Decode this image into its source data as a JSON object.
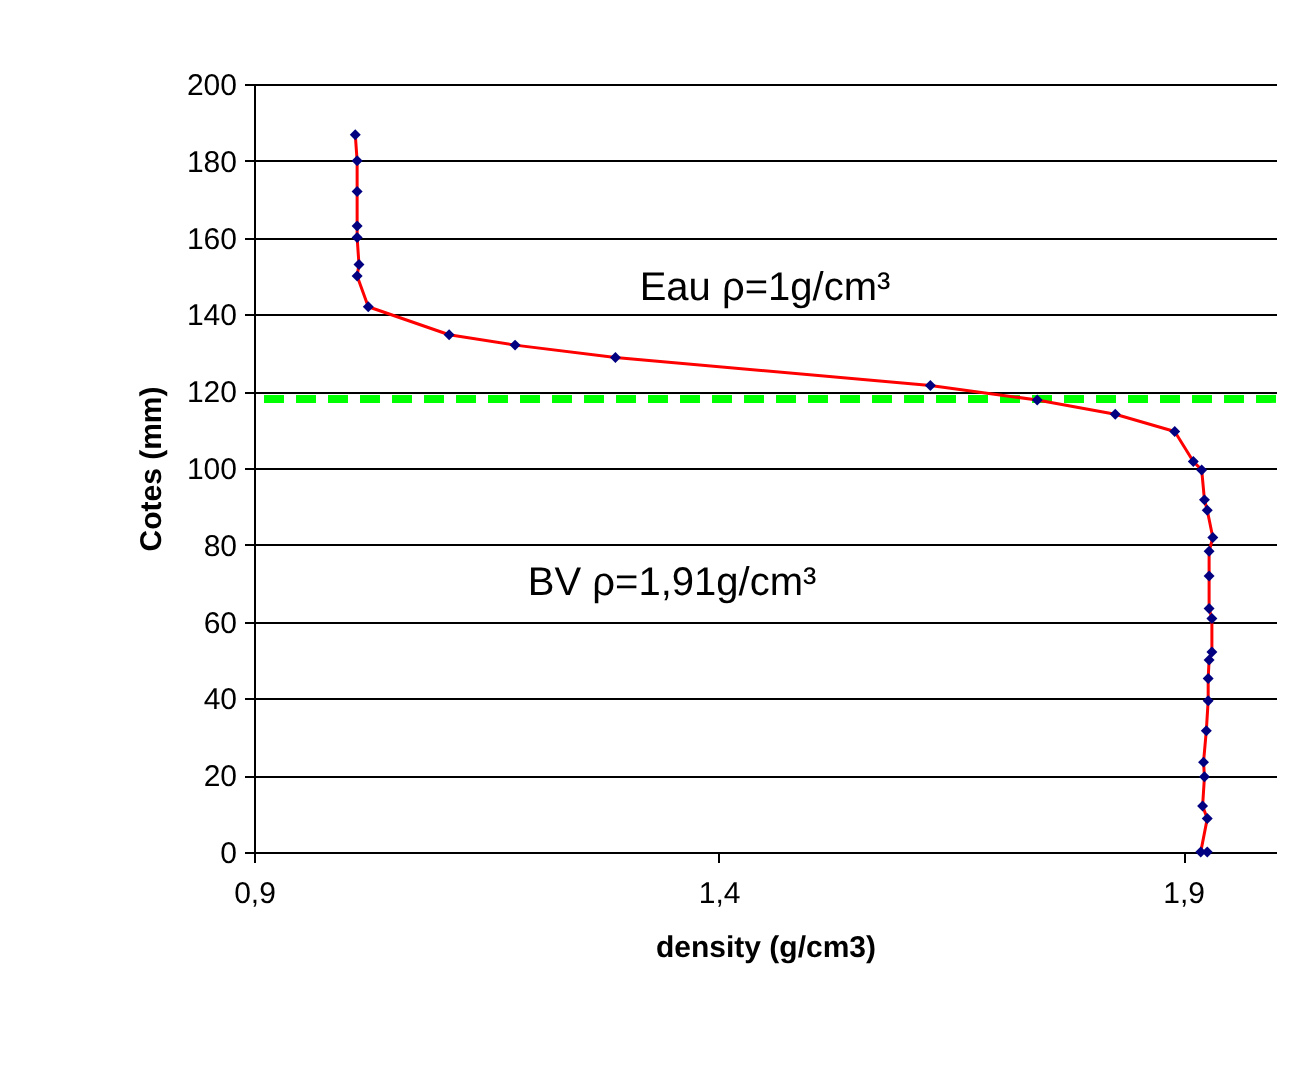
{
  "chart_data": {
    "type": "line",
    "xlabel": "density (g/cm3)",
    "ylabel": "Cotes (mm)",
    "xlim": [
      0.9,
      2.0
    ],
    "xticks": [
      {
        "value": 0.9,
        "label": "0,9"
      },
      {
        "value": 1.4,
        "label": "1,4"
      },
      {
        "value": 1.9,
        "label": "1,9"
      }
    ],
    "ylim": [
      0,
      200
    ],
    "yticks": [
      0,
      20,
      40,
      60,
      80,
      100,
      120,
      140,
      160,
      180,
      200
    ],
    "grid": "y",
    "series": [
      {
        "type": "line",
        "color": "#ff0000",
        "marker": "none",
        "x": [
          1.009,
          1.011,
          1.011,
          1.011,
          1.011,
          1.013,
          1.011,
          1.023,
          1.11,
          1.181,
          1.289,
          1.628,
          1.743,
          1.827,
          1.891,
          1.911,
          1.92,
          1.923,
          1.926,
          1.932,
          1.928,
          1.928,
          1.928,
          1.931,
          1.931,
          1.928,
          1.927,
          1.927,
          1.925,
          1.922,
          1.923,
          1.921,
          1.926,
          1.919,
          1.926
        ],
        "values": [
          186.8,
          180,
          172,
          163,
          160,
          153,
          150,
          142,
          134.7,
          132,
          128.8,
          121.5,
          117.7,
          114,
          109.5,
          101.7,
          99.5,
          91.7,
          89,
          81.9,
          78.3,
          71.9,
          63.4,
          60.8,
          52.1,
          50,
          45.2,
          39.4,
          31.6,
          23.4,
          19.6,
          12,
          8.7,
          0,
          0
        ]
      },
      {
        "type": "scatter",
        "color": "#000080",
        "marker": "diamond",
        "x": [
          1.009,
          1.011,
          1.011,
          1.011,
          1.011,
          1.013,
          1.011,
          1.023,
          1.11,
          1.181,
          1.289,
          1.628,
          1.743,
          1.827,
          1.891,
          1.911,
          1.92,
          1.923,
          1.926,
          1.932,
          1.928,
          1.928,
          1.928,
          1.931,
          1.931,
          1.928,
          1.927,
          1.927,
          1.925,
          1.922,
          1.923,
          1.921,
          1.926,
          1.919,
          1.926
        ],
        "values": [
          186.8,
          180,
          172,
          163,
          160,
          153,
          150,
          142,
          134.7,
          132,
          128.8,
          121.5,
          117.7,
          114,
          109.5,
          101.7,
          99.5,
          91.7,
          89,
          81.9,
          78.3,
          71.9,
          63.4,
          60.8,
          52.1,
          50,
          45.2,
          39.4,
          31.6,
          23.4,
          19.6,
          12,
          8.7,
          0,
          0
        ]
      }
    ],
    "ref_lines": [
      {
        "axis": "y",
        "value": 118,
        "color": "#00ff00",
        "line_style": "dashed"
      }
    ],
    "annotations": [
      "Eau ρ=1g/cm³",
      "BV ρ=1,91g/cm³"
    ]
  }
}
